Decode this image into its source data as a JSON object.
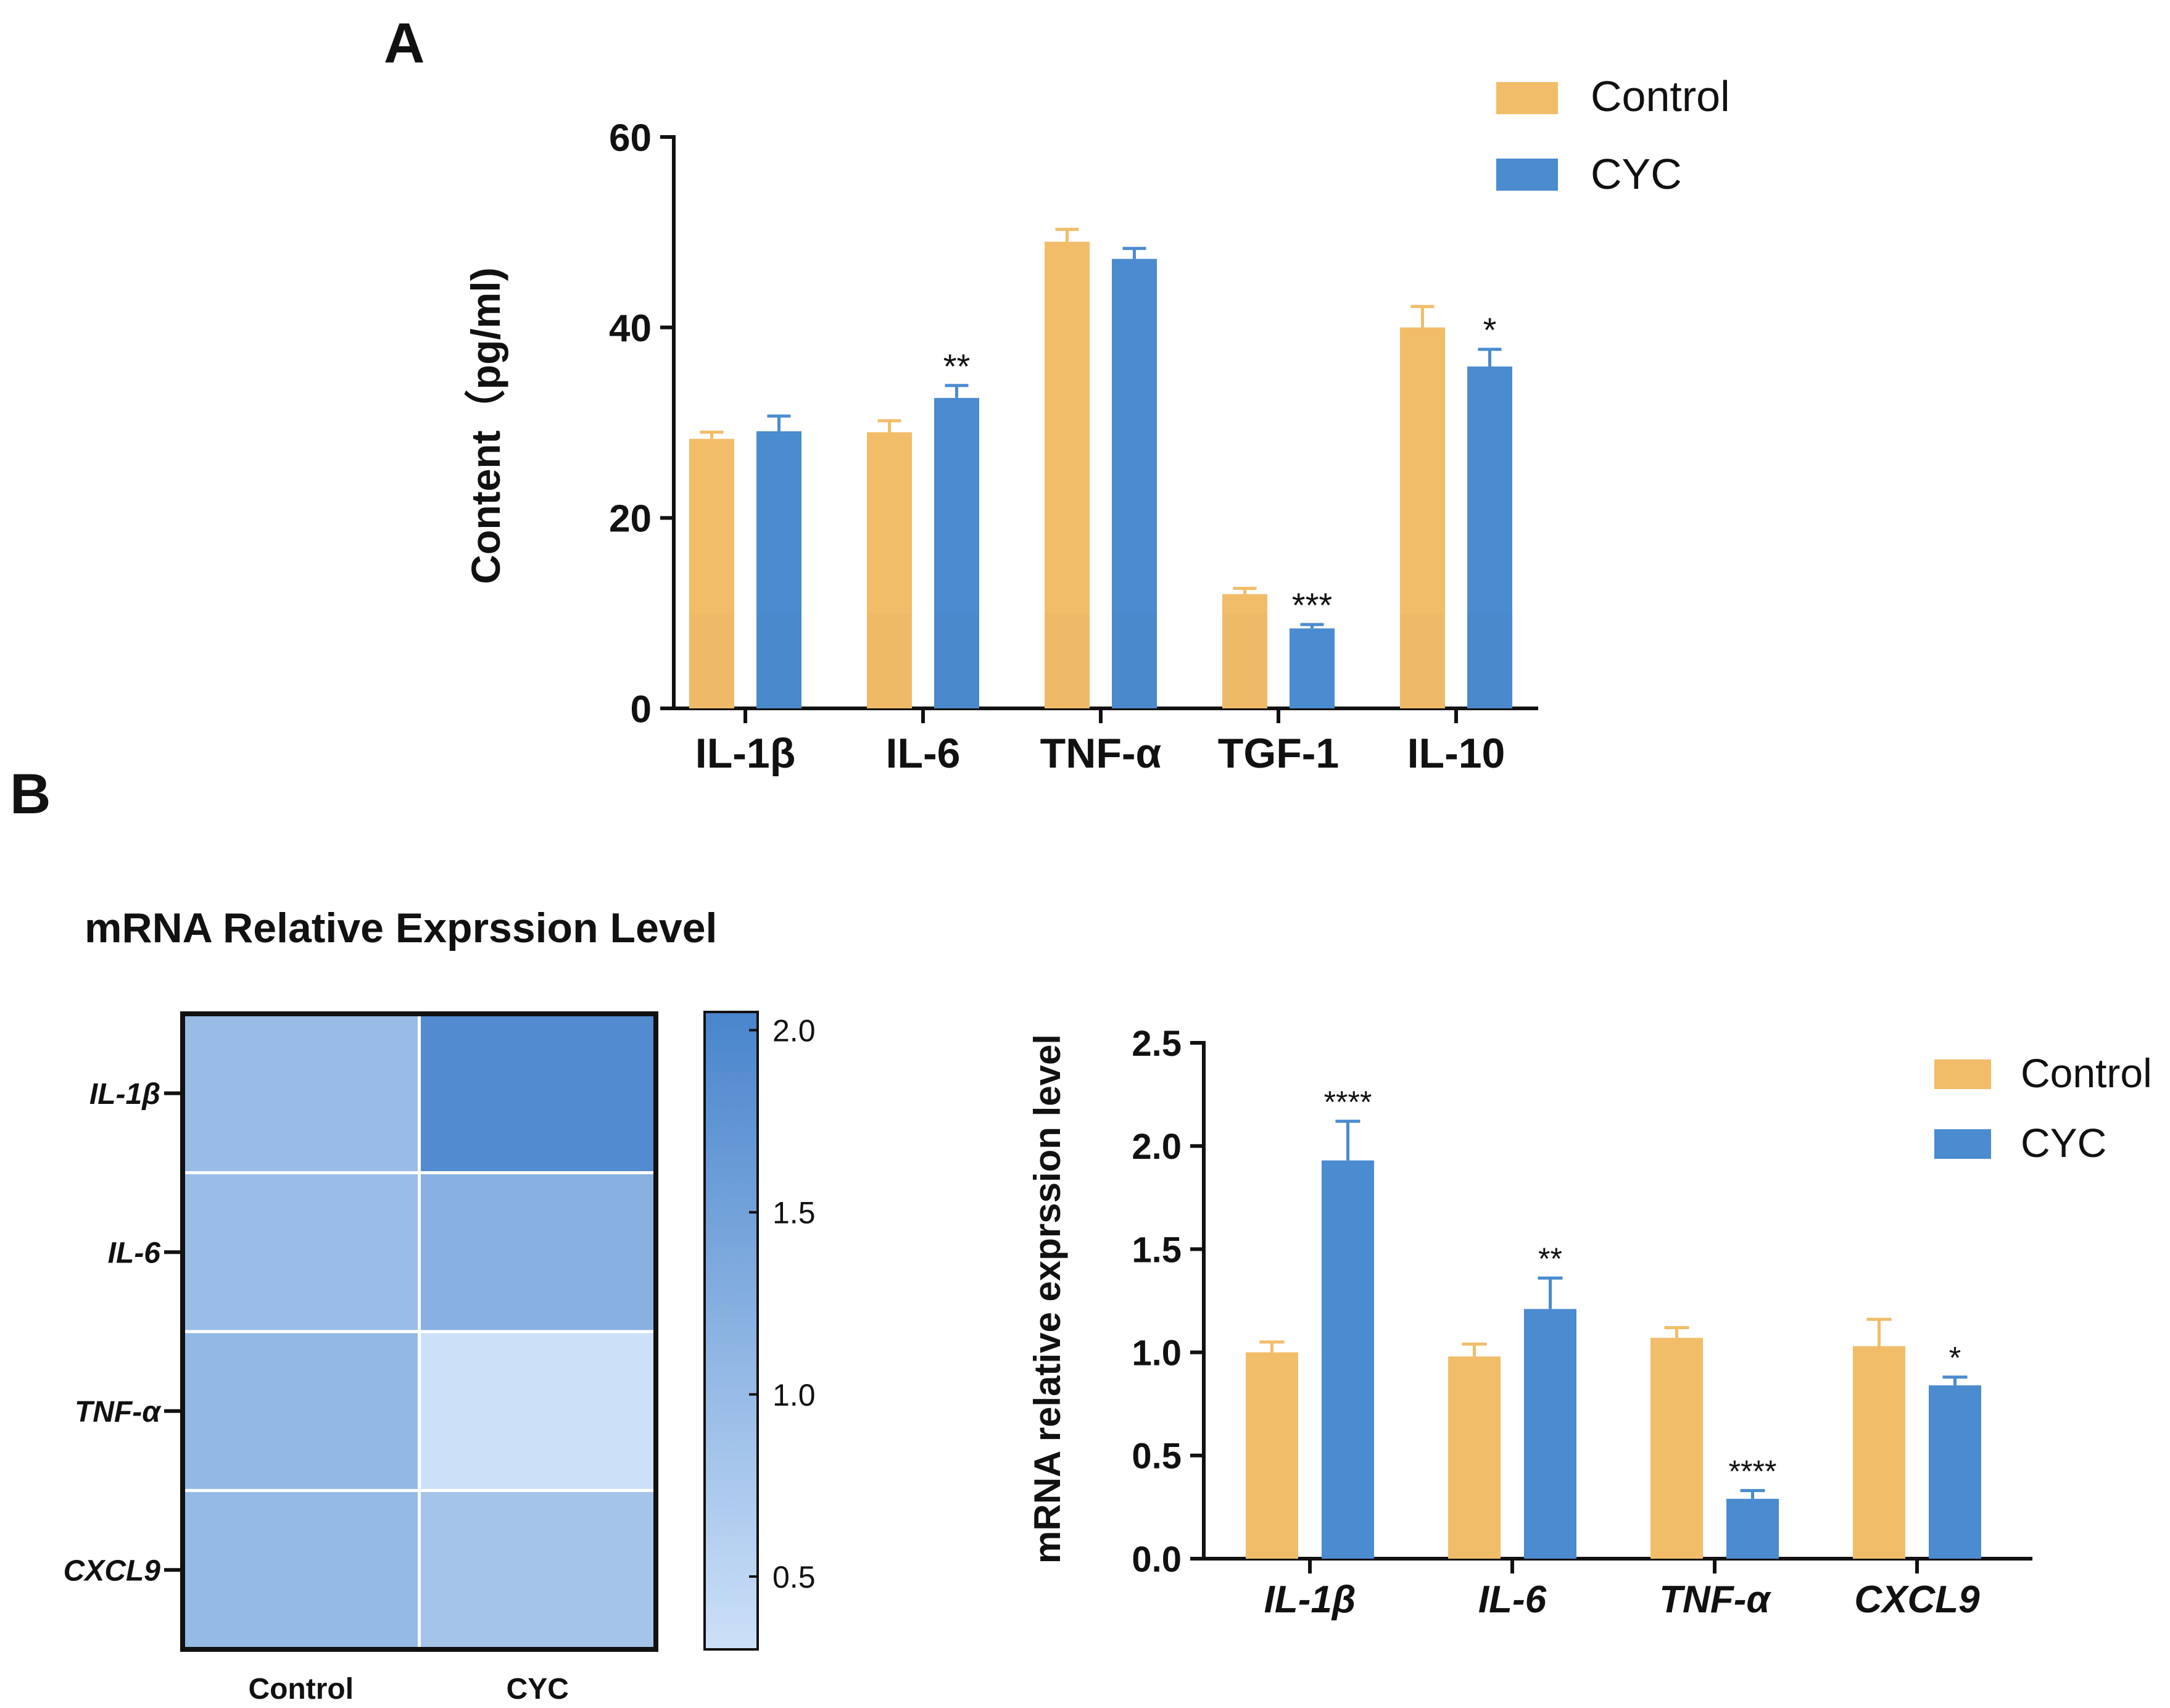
{
  "panel_a": {
    "letter": "A",
    "chart_type": "bar",
    "categories": [
      "IL-1β",
      "IL-6",
      "TNF-α",
      "TGF-1",
      "IL-10"
    ],
    "series": [
      {
        "name": "Control",
        "values": [
          28.3,
          29.0,
          49.0,
          12.0,
          40.0
        ],
        "errors": [
          0.7,
          1.2,
          1.3,
          0.6,
          2.2
        ],
        "color": "#F2BD69"
      },
      {
        "name": "CYC",
        "values": [
          29.1,
          32.6,
          47.2,
          8.4,
          35.9
        ],
        "errors": [
          1.6,
          1.3,
          1.1,
          0.4,
          1.8
        ],
        "color": "#4B8BCF"
      }
    ],
    "significance": [
      "",
      "**",
      "",
      "***",
      "*"
    ],
    "ylabel": "Content（pg/ml)",
    "ylim": [
      0,
      60
    ],
    "yticks": [
      0,
      20,
      40,
      60
    ],
    "ytick_labels": [
      "0",
      "20",
      "40",
      "60"
    ],
    "legend": [
      "Control",
      "CYC"
    ]
  },
  "panel_b": {
    "letter": "B",
    "heatmap": {
      "title": "mRNA Relative Exprssion Level",
      "rows": [
        "IL-1β",
        "IL-6",
        "TNF-α",
        "CXCL9"
      ],
      "columns": [
        "Control",
        "CYC"
      ],
      "values": [
        [
          1.0,
          1.93
        ],
        [
          0.98,
          1.21
        ],
        [
          1.07,
          0.29
        ],
        [
          1.03,
          0.84
        ]
      ],
      "scale_min": 0.3,
      "scale_max": 2.05,
      "colorbar_ticks": [
        2.0,
        1.5,
        1.0,
        0.5
      ],
      "colorbar_tick_labels": [
        "2.0",
        "1.5",
        "1.0",
        "0.5"
      ],
      "color_low": "#CCE0F8",
      "color_high": "#4985CC"
    },
    "bar": {
      "chart_type": "bar",
      "categories": [
        "IL-1β",
        "IL-6",
        "TNF-α",
        "CXCL9"
      ],
      "series": [
        {
          "name": "Control",
          "values": [
            1.0,
            0.98,
            1.07,
            1.03
          ],
          "errors": [
            0.05,
            0.06,
            0.05,
            0.13
          ],
          "color": "#F2BD69"
        },
        {
          "name": "CYC",
          "values": [
            1.93,
            1.21,
            0.29,
            0.84
          ],
          "errors": [
            0.19,
            0.15,
            0.04,
            0.04
          ],
          "color": "#4B8BCF"
        }
      ],
      "significance": [
        "****",
        "**",
        "****",
        "*"
      ],
      "ylabel": "mRNA relative exprssion level",
      "ylim": [
        0,
        2.5
      ],
      "yticks": [
        0,
        0.5,
        1.0,
        1.5,
        2.0,
        2.5
      ],
      "ytick_labels": [
        "0.0",
        "0.5",
        "1.0",
        "1.5",
        "2.0",
        "2.5"
      ],
      "legend": [
        "Control",
        "CYC"
      ]
    }
  }
}
